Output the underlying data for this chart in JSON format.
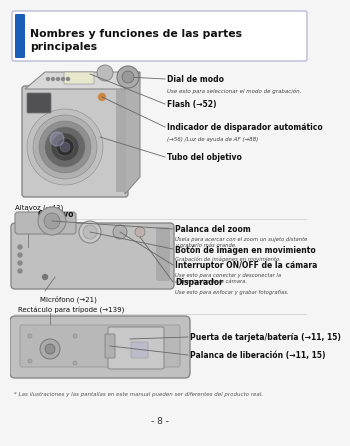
{
  "title_line1": "Nombres y funciones de las partes",
  "title_line2": "principales",
  "title_bar_color": "#1a5eb8",
  "bg_color": "#f5f5f5",
  "page_number": "- 8 -",
  "footnote": "* Las ilustraciones y las pantallas en este manual pueden ser diferentes del producto real.",
  "section1_labels": [
    {
      "text": "Dial de modo",
      "bold": true,
      "sub": "Use esto para seleccionar el modo de grabación."
    },
    {
      "text": "Flash (→52)",
      "bold": true,
      "sub": ""
    },
    {
      "text": "Indicador de disparador automático",
      "bold": true,
      "sub": "(→56) /Luz de ayuda de AF (→88)"
    },
    {
      "text": "Tubo del objetivo",
      "bold": true,
      "sub": ""
    }
  ],
  "objetivo_label": "Objetivo",
  "section2_left_labels": [
    {
      "text": "Altavoz (→43)",
      "bold": false
    },
    {
      "text": "Micrófono (→21)",
      "bold": false
    }
  ],
  "section2_right_labels": [
    {
      "text": "Palanca del zoom",
      "bold": true,
      "sub": "Úsela para acercar con el zoom un sujeto distante\ny grabarlo más grande."
    },
    {
      "text": "Botón de imagen en movimiento",
      "bold": true,
      "sub": "Grabación de imágenes en movimiento."
    },
    {
      "text": "Interruptor ON/OFF de la cámara",
      "bold": true,
      "sub": "Use esto para conectar y desconectar la\nalimentación de la cámara."
    },
    {
      "text": "Disparador",
      "bold": true,
      "sub": "Use esto para enfocar y grabar fotografías."
    }
  ],
  "section3_labels": [
    {
      "text": "Rectáculo para trípode (→139)",
      "bold": false
    },
    {
      "text": "Puerta de tarjeta/batería (→11, 15)",
      "bold": true
    },
    {
      "text": "Palanca de liberación (→11, 15)",
      "bold": true
    }
  ]
}
